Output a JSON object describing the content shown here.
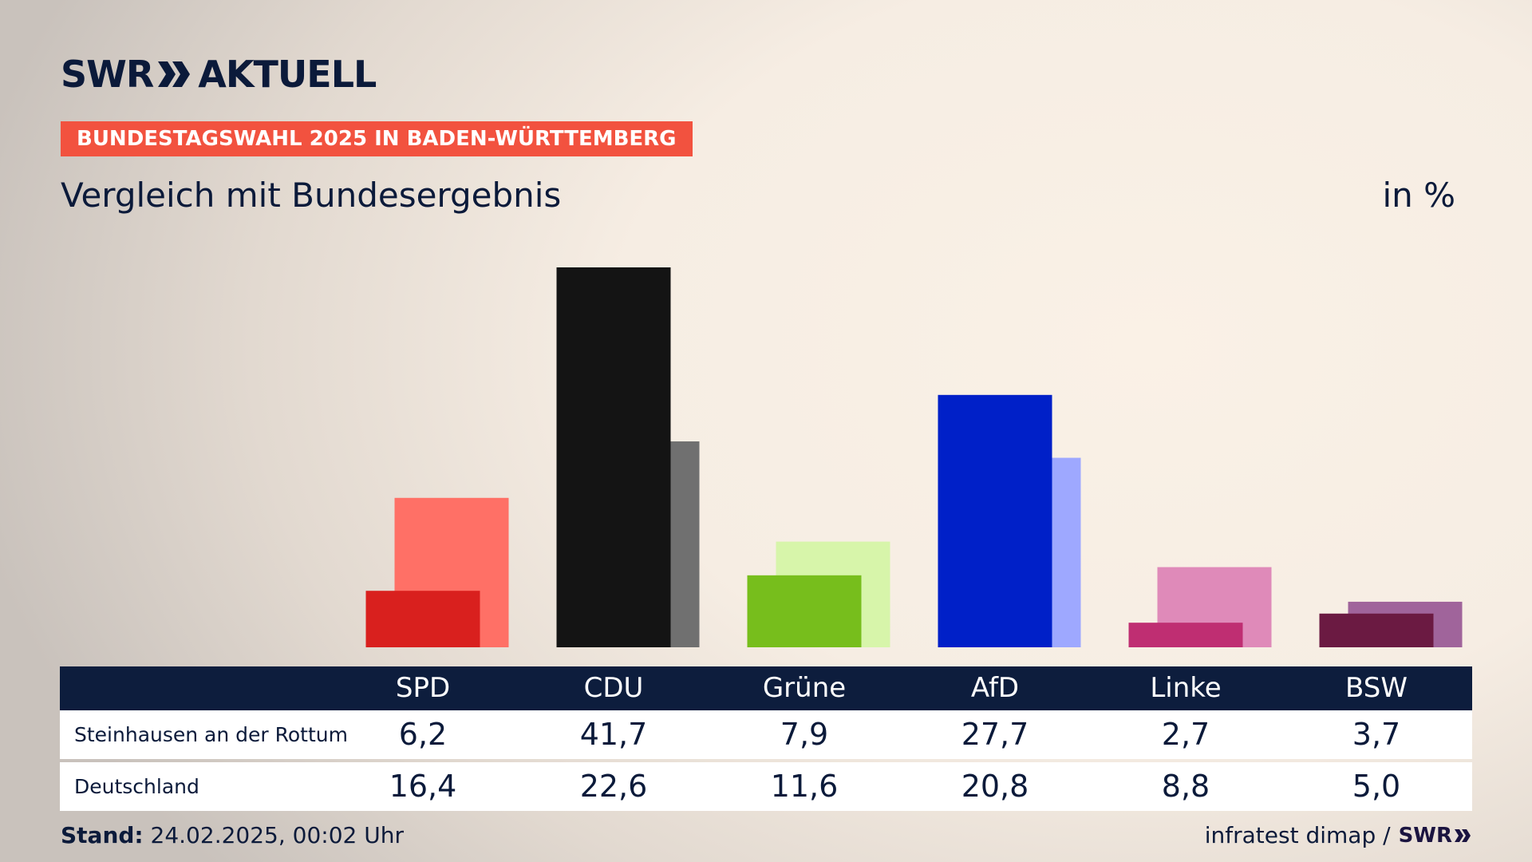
{
  "header": {
    "logo_left": "SWR",
    "logo_right": "AKTUELL",
    "badge": "BUNDESTAGSWAHL 2025 IN BADEN-WÜRTTEMBERG",
    "subtitle": "Vergleich mit Bundesergebnis",
    "unit": "in %"
  },
  "chart_data": {
    "type": "bar",
    "categories": [
      "SPD",
      "CDU",
      "Grüne",
      "AfD",
      "Linke",
      "BSW"
    ],
    "series": [
      {
        "name": "Steinhausen an der Rottum",
        "values": [
          6.2,
          41.7,
          7.9,
          27.7,
          2.7,
          3.7
        ],
        "colors": [
          "#d9201e",
          "#141414",
          "#77be1c",
          "#0020c8",
          "#bf2e72",
          "#6b1a42"
        ]
      },
      {
        "name": "Deutschland",
        "values": [
          16.4,
          22.6,
          11.6,
          20.8,
          8.8,
          5.0
        ],
        "colors": [
          "#ff7066",
          "#707070",
          "#d7f5aa",
          "#9ea8ff",
          "#df8ab9",
          "#a0649b"
        ]
      }
    ],
    "ylim": [
      0,
      41.7
    ]
  },
  "table": {
    "rows": [
      {
        "label": "Steinhausen an der Rottum",
        "values": [
          "6,2",
          "41,7",
          "7,9",
          "27,7",
          "2,7",
          "3,7"
        ]
      },
      {
        "label": "Deutschland",
        "values": [
          "16,4",
          "22,6",
          "11,6",
          "20,8",
          "8,8",
          "5,0"
        ]
      }
    ]
  },
  "footer": {
    "stand_label": "Stand:",
    "stand_value": "24.02.2025, 00:02 Uhr",
    "source": "infratest dimap /",
    "source_logo": "SWR"
  },
  "colors": {
    "navy": "#0d1d3d",
    "badge": "#f2523f"
  }
}
